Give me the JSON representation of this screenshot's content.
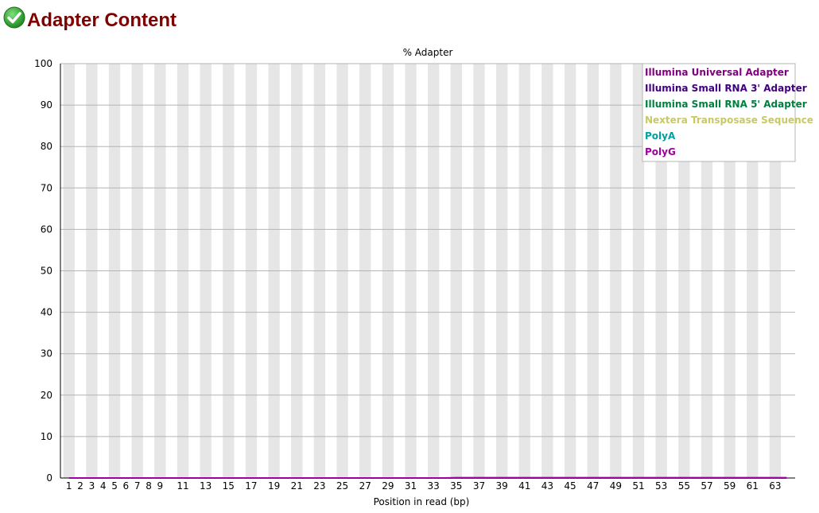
{
  "header": {
    "title": "Adapter Content",
    "status_icon": "check-circle-icon",
    "status_color": "#2e9e2e"
  },
  "chart_data": {
    "type": "line",
    "title": "% Adapter",
    "xlabel": "Position in read (bp)",
    "ylabel": "",
    "ylim": [
      0,
      100
    ],
    "yticks": [
      0,
      10,
      20,
      30,
      40,
      50,
      60,
      70,
      80,
      90,
      100
    ],
    "grid": true,
    "legend": "top-right",
    "categories": [
      "1",
      "2",
      "3",
      "4",
      "5",
      "6",
      "7",
      "8",
      "9",
      "10",
      "11",
      "12",
      "13",
      "14",
      "15",
      "16",
      "17",
      "18",
      "19",
      "20",
      "21",
      "22",
      "23",
      "24",
      "25",
      "26",
      "27",
      "28",
      "29",
      "30",
      "31",
      "32",
      "33",
      "34",
      "35",
      "36",
      "37",
      "38",
      "39",
      "40",
      "41",
      "42",
      "43",
      "44",
      "45",
      "46",
      "47",
      "48",
      "49",
      "50",
      "51",
      "52",
      "53",
      "54",
      "55",
      "56",
      "57",
      "58",
      "59",
      "60",
      "61",
      "62",
      "63",
      "64"
    ],
    "tick_labels": [
      "1",
      "2",
      "3",
      "4",
      "5",
      "6",
      "7",
      "8",
      "9",
      "11",
      "13",
      "15",
      "17",
      "19",
      "21",
      "23",
      "25",
      "27",
      "29",
      "31",
      "33",
      "35",
      "37",
      "39",
      "41",
      "43",
      "45",
      "47",
      "49",
      "51",
      "53",
      "55",
      "57",
      "59",
      "61",
      "63"
    ],
    "series": [
      {
        "name": "Illumina Universal Adapter",
        "color": "#800080",
        "values": [
          0,
          0,
          0,
          0,
          0,
          0,
          0,
          0,
          0,
          0,
          0,
          0,
          0,
          0,
          0,
          0,
          0,
          0,
          0,
          0,
          0,
          0,
          0,
          0,
          0,
          0,
          0,
          0,
          0,
          0,
          0,
          0,
          0,
          0,
          0,
          0,
          0,
          0,
          0,
          0,
          0,
          0,
          0,
          0,
          0,
          0,
          0,
          0,
          0,
          0,
          0,
          0,
          0,
          0,
          0,
          0,
          0,
          0,
          0,
          0,
          0,
          0,
          0,
          0
        ]
      },
      {
        "name": "Illumina Small RNA 3' Adapter",
        "color": "#400080",
        "values": [
          0,
          0,
          0,
          0,
          0,
          0,
          0,
          0,
          0,
          0,
          0,
          0,
          0,
          0,
          0,
          0,
          0,
          0,
          0,
          0,
          0,
          0,
          0,
          0,
          0,
          0,
          0,
          0,
          0,
          0,
          0,
          0,
          0,
          0,
          0,
          0,
          0,
          0,
          0,
          0,
          0,
          0,
          0,
          0,
          0,
          0,
          0,
          0,
          0,
          0,
          0,
          0,
          0,
          0,
          0,
          0,
          0,
          0,
          0,
          0,
          0,
          0,
          0,
          0
        ]
      },
      {
        "name": "Illumina Small RNA 5' Adapter",
        "color": "#008040",
        "values": [
          0,
          0,
          0,
          0,
          0,
          0,
          0,
          0,
          0,
          0,
          0,
          0,
          0,
          0,
          0,
          0,
          0,
          0,
          0,
          0,
          0,
          0,
          0,
          0,
          0,
          0,
          0,
          0,
          0,
          0,
          0,
          0,
          0,
          0,
          0,
          0,
          0,
          0,
          0,
          0,
          0,
          0,
          0,
          0,
          0,
          0,
          0,
          0,
          0,
          0,
          0,
          0,
          0,
          0,
          0,
          0,
          0,
          0,
          0,
          0,
          0,
          0,
          0,
          0
        ]
      },
      {
        "name": "Nextera Transposase Sequence",
        "color": "#c8c864",
        "values": [
          0,
          0,
          0,
          0,
          0,
          0,
          0,
          0,
          0,
          0,
          0,
          0,
          0,
          0,
          0,
          0,
          0,
          0,
          0,
          0,
          0,
          0,
          0,
          0,
          0,
          0,
          0,
          0,
          0,
          0,
          0,
          0,
          0,
          0,
          0,
          0,
          0,
          0,
          0,
          0,
          0,
          0,
          0,
          0,
          0,
          0,
          0,
          0,
          0,
          0,
          0,
          0,
          0,
          0,
          0,
          0,
          0,
          0,
          0,
          0,
          0,
          0,
          0,
          0
        ]
      },
      {
        "name": "PolyA",
        "color": "#00a0a0",
        "values": [
          0,
          0,
          0,
          0,
          0,
          0,
          0,
          0,
          0,
          0,
          0,
          0,
          0,
          0,
          0,
          0,
          0,
          0,
          0,
          0,
          0,
          0,
          0,
          0,
          0,
          0,
          0,
          0,
          0,
          0,
          0,
          0,
          0,
          0,
          0.1,
          0.1,
          0.1,
          0.1,
          0.1,
          0.1,
          0.1,
          0.1,
          0.1,
          0.1,
          0.1,
          0.1,
          0.1,
          0.1,
          0.1,
          0.1,
          0.1,
          0.1,
          0.1,
          0.1,
          0.1,
          0.1,
          0.1,
          0.1,
          0.1,
          0.1,
          0.1,
          0.1,
          0.1,
          0.1
        ]
      },
      {
        "name": "PolyG",
        "color": "#a000a0",
        "values": [
          0,
          0,
          0,
          0,
          0,
          0,
          0,
          0,
          0,
          0,
          0,
          0,
          0,
          0,
          0,
          0,
          0,
          0,
          0,
          0,
          0,
          0,
          0,
          0,
          0,
          0,
          0,
          0,
          0,
          0,
          0,
          0,
          0,
          0,
          0,
          0,
          0,
          0,
          0,
          0,
          0,
          0,
          0,
          0,
          0,
          0,
          0,
          0,
          0,
          0,
          0,
          0,
          0,
          0,
          0,
          0,
          0,
          0,
          0,
          0,
          0,
          0,
          0,
          0
        ]
      }
    ]
  }
}
